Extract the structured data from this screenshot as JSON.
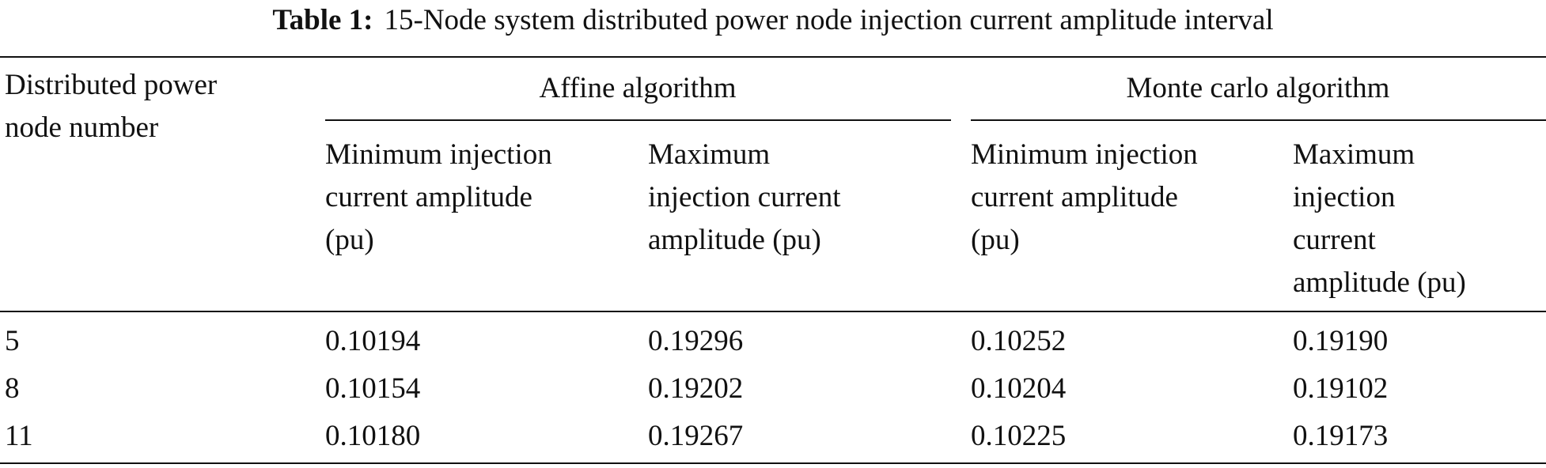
{
  "title": {
    "label": "Table 1:",
    "text": "15-Node system distributed power node injection current amplitude interval"
  },
  "table": {
    "header": {
      "row_label": [
        "Distributed power",
        "node number"
      ],
      "groups": [
        "Affine algorithm",
        "Monte carlo algorithm"
      ],
      "columns": [
        [
          "Minimum injection",
          "current amplitude",
          "(pu)"
        ],
        [
          "Maximum",
          "injection current",
          "amplitude (pu)"
        ],
        [
          "Minimum injection",
          "current amplitude",
          "(pu)"
        ],
        [
          "Maximum",
          "injection",
          "current",
          "amplitude (pu)"
        ]
      ]
    },
    "rows": [
      [
        "5",
        "0.10194",
        "0.19296",
        "0.10252",
        "0.19190"
      ],
      [
        "8",
        "0.10154",
        "0.19202",
        "0.10204",
        "0.19102"
      ],
      [
        "11",
        "0.10180",
        "0.19267",
        "0.10225",
        "0.19173"
      ]
    ]
  }
}
